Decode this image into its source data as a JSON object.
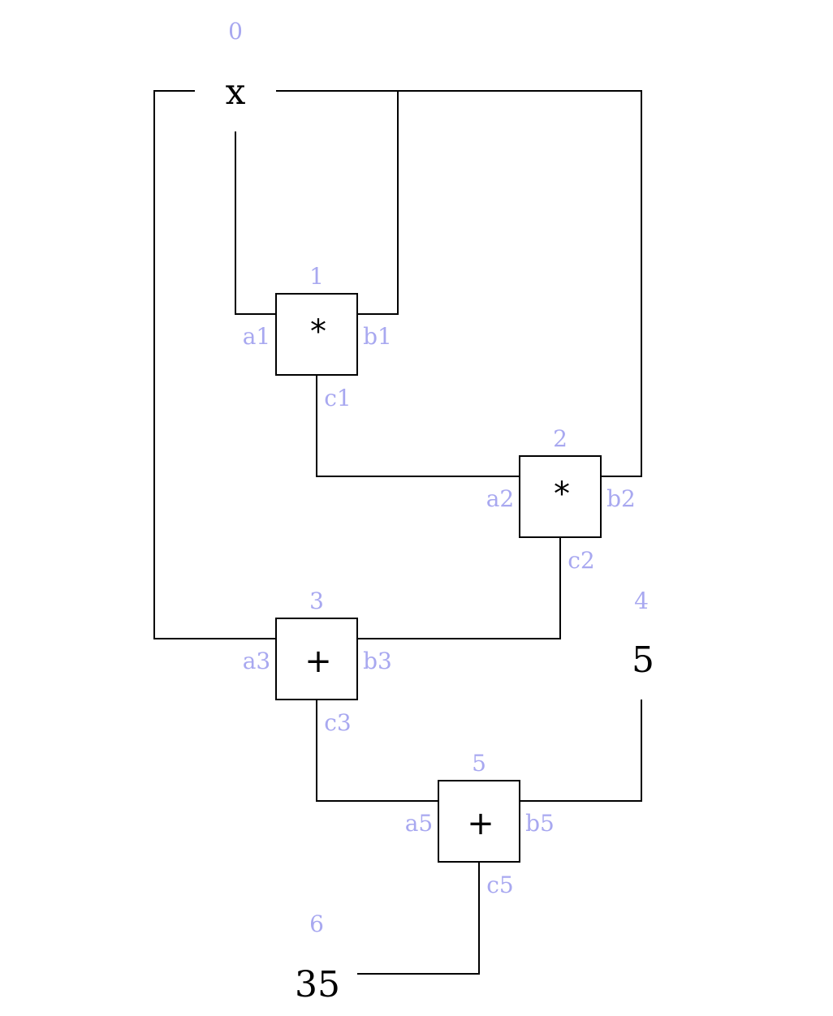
{
  "colors": {
    "label": "#a8a8f0",
    "line": "#000000",
    "text": "#000000"
  },
  "nodes": [
    {
      "id": "node-0",
      "index": "0",
      "value": "x"
    },
    {
      "id": "node-4",
      "index": "4",
      "value": "5"
    },
    {
      "id": "node-6",
      "index": "6",
      "value": "35"
    }
  ],
  "gates": [
    {
      "id": "gate-1",
      "index": "1",
      "op": "*",
      "in_a": "a1",
      "in_b": "b1",
      "out": "c1"
    },
    {
      "id": "gate-2",
      "index": "2",
      "op": "*",
      "in_a": "a2",
      "in_b": "b2",
      "out": "c2"
    },
    {
      "id": "gate-3",
      "index": "3",
      "op": "+",
      "in_a": "a3",
      "in_b": "b3",
      "out": "c3"
    },
    {
      "id": "gate-5",
      "index": "5",
      "op": "+",
      "in_a": "a5",
      "in_b": "b5",
      "out": "c5"
    }
  ]
}
